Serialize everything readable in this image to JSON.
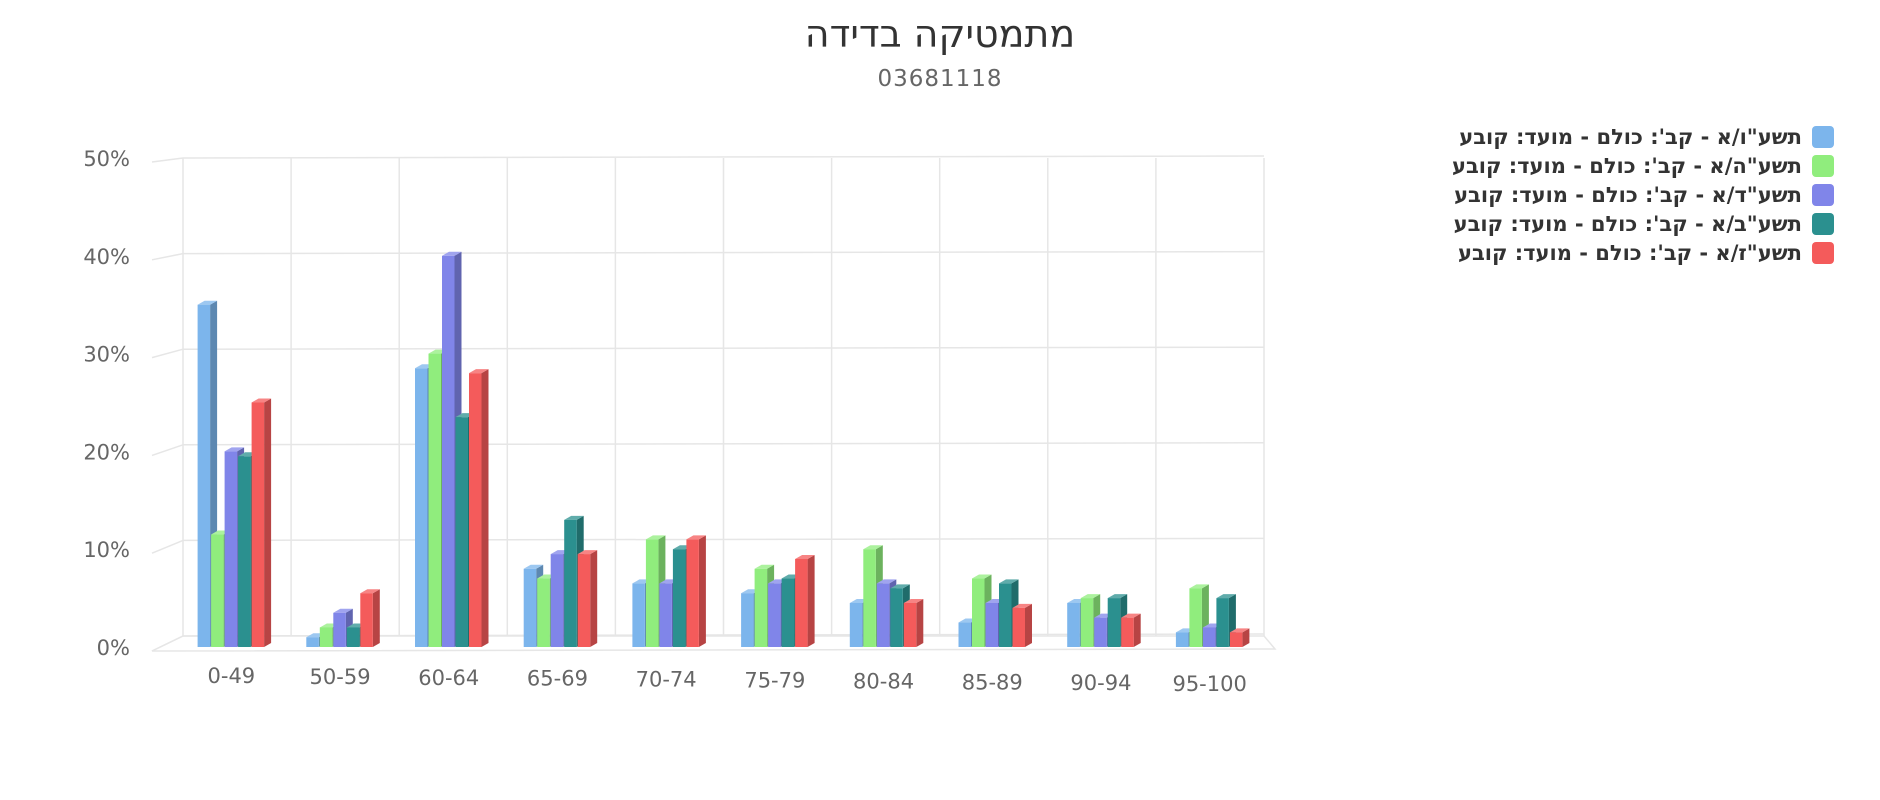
{
  "chart_data": {
    "type": "bar",
    "title": "מתמטיקה בדידה",
    "subtitle": "03681118",
    "categories": [
      "0-49",
      "50-59",
      "60-64",
      "65-69",
      "70-74",
      "75-79",
      "80-84",
      "85-89",
      "90-94",
      "95-100"
    ],
    "y_tick_labels": [
      "0%",
      "10%",
      "20%",
      "30%",
      "40%",
      "50%"
    ],
    "ylim": [
      0,
      50
    ],
    "grid": true,
    "legend_position": "top-right",
    "series": [
      {
        "name": "תשע\"ו/א - קב': כולם - מועד: קובע",
        "color": "#7cb5ec",
        "values": [
          35.0,
          1.0,
          28.5,
          8.0,
          6.5,
          5.5,
          4.5,
          2.5,
          4.5,
          1.5
        ]
      },
      {
        "name": "תשע\"ה/א - קב': כולם - מועד: קובע",
        "color": "#90ed7d",
        "values": [
          11.5,
          2.0,
          30.0,
          7.0,
          11.0,
          8.0,
          10.0,
          7.0,
          5.0,
          6.0
        ]
      },
      {
        "name": "תשע\"ד/א - קב': כולם - מועד: קובע",
        "color": "#8085e9",
        "values": [
          20.0,
          3.5,
          40.0,
          9.5,
          6.5,
          6.5,
          6.5,
          4.5,
          3.0,
          2.0
        ]
      },
      {
        "name": "תשע\"ב/א - קב': כולם - מועד: קובע",
        "color": "#2b908f",
        "values": [
          19.5,
          2.0,
          23.5,
          13.0,
          10.0,
          7.0,
          6.0,
          6.5,
          5.0,
          5.0
        ]
      },
      {
        "name": "תשע\"ז/א - קב': כולם - מועד: קובע",
        "color": "#f45b5b",
        "values": [
          25.0,
          5.5,
          28.0,
          9.5,
          11.0,
          9.0,
          4.5,
          4.0,
          3.0,
          1.5
        ]
      }
    ]
  }
}
